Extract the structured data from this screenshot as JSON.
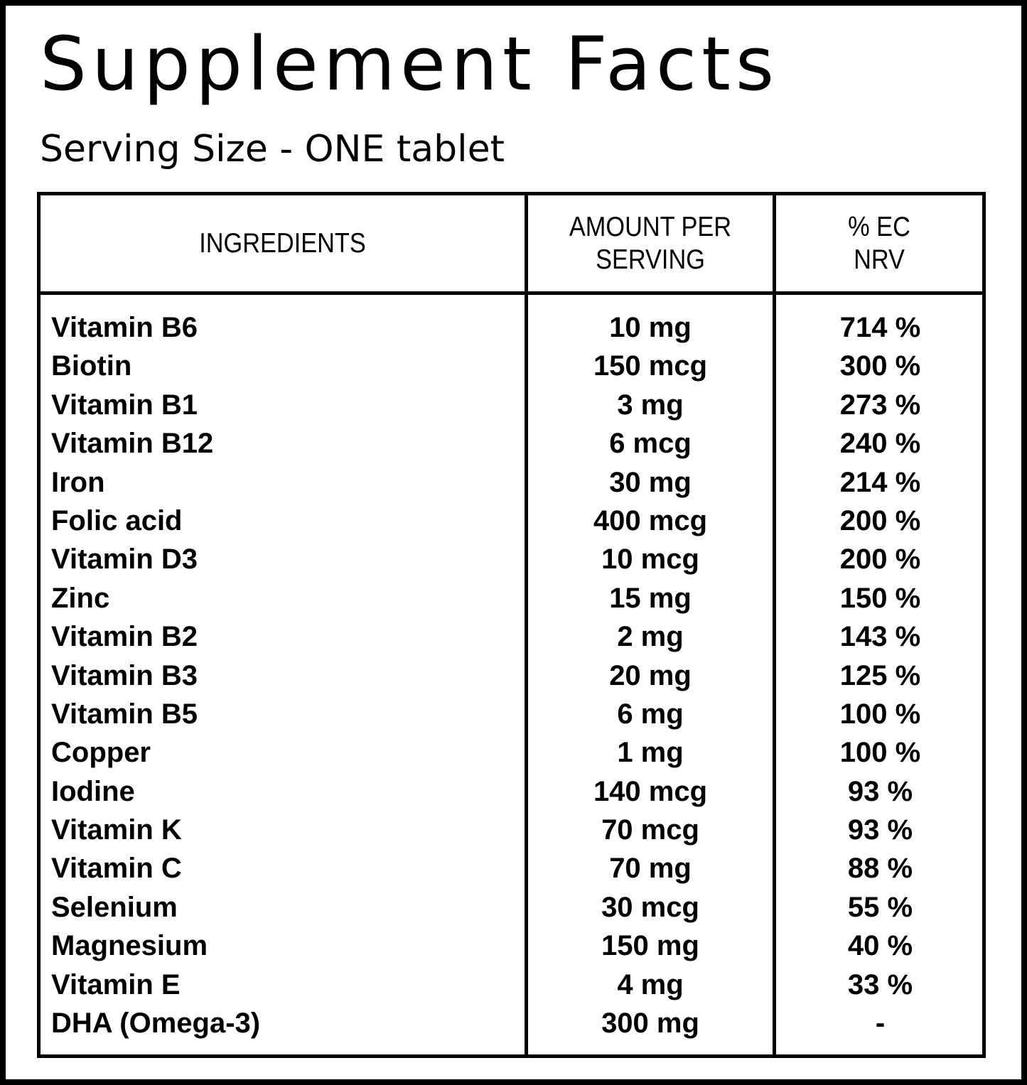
{
  "title": "Supplement Facts",
  "serving_size": "Serving Size - ONE tablet",
  "table": {
    "headers": {
      "ingredients": "INGREDIENTS",
      "amount_line1": "AMOUNT PER",
      "amount_line2": "SERVING",
      "nrv_line1": "% EC",
      "nrv_line2": "NRV"
    },
    "rows": [
      {
        "name": "Vitamin B6",
        "amount": "10 mg",
        "nrv": "714 %"
      },
      {
        "name": "Biotin",
        "amount": "150 mcg",
        "nrv": "300 %"
      },
      {
        "name": "Vitamin B1",
        "amount": "3 mg",
        "nrv": "273 %"
      },
      {
        "name": "Vitamin B12",
        "amount": "6 mcg",
        "nrv": "240 %"
      },
      {
        "name": "Iron",
        "amount": "30 mg",
        "nrv": "214 %"
      },
      {
        "name": "Folic acid",
        "amount": "400 mcg",
        "nrv": "200 %"
      },
      {
        "name": "Vitamin D3",
        "amount": "10 mcg",
        "nrv": "200 %"
      },
      {
        "name": "Zinc",
        "amount": "15 mg",
        "nrv": "150 %"
      },
      {
        "name": "Vitamin B2",
        "amount": "2 mg",
        "nrv": "143 %"
      },
      {
        "name": "Vitamin B3",
        "amount": "20 mg",
        "nrv": "125 %"
      },
      {
        "name": "Vitamin B5",
        "amount": "6 mg",
        "nrv": "100 %"
      },
      {
        "name": "Copper",
        "amount": "1 mg",
        "nrv": "100 %"
      },
      {
        "name": "Iodine",
        "amount": "140 mcg",
        "nrv": "93 %"
      },
      {
        "name": "Vitamin K",
        "amount": "70 mcg",
        "nrv": "93 %"
      },
      {
        "name": "Vitamin C",
        "amount": "70 mg",
        "nrv": "88 %"
      },
      {
        "name": "Selenium",
        "amount": "30 mcg",
        "nrv": "55 %"
      },
      {
        "name": "Magnesium",
        "amount": "150 mg",
        "nrv": "40 %"
      },
      {
        "name": "Vitamin E",
        "amount": "4 mg",
        "nrv": "33 %"
      },
      {
        "name": "DHA (Omega-3)",
        "amount": "300 mg",
        "nrv": "-"
      }
    ]
  }
}
